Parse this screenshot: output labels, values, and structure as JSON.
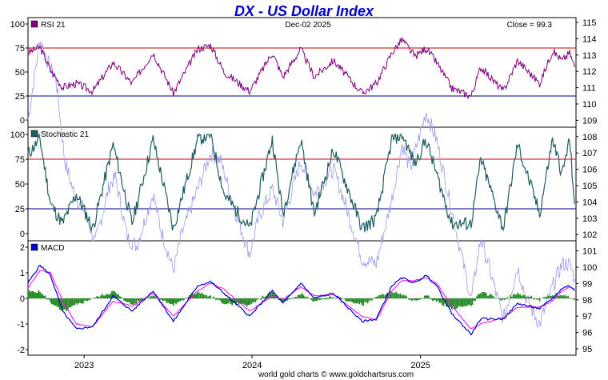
{
  "header": {
    "title": "DX  -  US Dollar Index",
    "date": "Dec-02  2025",
    "close_label": "Close = 99.3"
  },
  "footer": {
    "credit": "world gold charts © www.goldchartsrus.com"
  },
  "colors": {
    "title": "#0000cc",
    "rsi": "#800080",
    "stoch": "#1f5f5f",
    "macd": "#0000cc",
    "signal": "#ff00ff",
    "hist": "#228b22",
    "price": "#9999ee",
    "overbought": "#cc0000",
    "oversold": "#000080"
  },
  "panels": [
    {
      "key": "rsi",
      "legend": "RSI 21",
      "y_ticks": [
        "100",
        "75",
        "50",
        "25",
        "0"
      ],
      "levels": [
        75,
        25
      ]
    },
    {
      "key": "stoch",
      "legend": "Stochastic 21",
      "y_ticks": [
        "100",
        "75",
        "50",
        "25",
        "0"
      ],
      "levels": [
        75,
        25
      ]
    },
    {
      "key": "macd",
      "legend": "MACD",
      "y_ticks": [
        "2",
        "1",
        "0",
        "-1",
        "-2"
      ],
      "levels": []
    }
  ],
  "chart_data": {
    "type": "line",
    "title": "DX  -  US Dollar Index",
    "x_labels": [
      "2023",
      "2024",
      "2025"
    ],
    "x_range": [
      "2022-09",
      "2025-12"
    ],
    "price": {
      "name": "DX",
      "right_axis_ticks": [
        "115",
        "114",
        "113",
        "112",
        "111",
        "110",
        "109",
        "108",
        "107",
        "106",
        "105",
        "104",
        "103",
        "102",
        "101",
        "100",
        "99",
        "98",
        "97",
        "96",
        "95"
      ],
      "ylim": [
        94.5,
        115.7
      ],
      "points": [
        [
          "2022-09-01",
          109.0
        ],
        [
          "2022-09-27",
          114.0
        ],
        [
          "2022-10-15",
          112.5
        ],
        [
          "2022-11-01",
          111.5
        ],
        [
          "2022-11-20",
          106.5
        ],
        [
          "2022-12-10",
          104.5
        ],
        [
          "2023-01-01",
          103.5
        ],
        [
          "2023-01-25",
          101.5
        ],
        [
          "2023-02-25",
          105.0
        ],
        [
          "2023-03-10",
          105.5
        ],
        [
          "2023-04-05",
          101.8
        ],
        [
          "2023-04-25",
          101.3
        ],
        [
          "2023-05-31",
          104.5
        ],
        [
          "2023-06-15",
          102.5
        ],
        [
          "2023-07-14",
          99.8
        ],
        [
          "2023-08-01",
          102.0
        ],
        [
          "2023-09-05",
          104.8
        ],
        [
          "2023-10-03",
          107.0
        ],
        [
          "2023-10-25",
          106.5
        ],
        [
          "2023-11-30",
          103.0
        ],
        [
          "2023-12-27",
          100.8
        ],
        [
          "2024-01-15",
          103.0
        ],
        [
          "2024-02-14",
          104.8
        ],
        [
          "2024-03-08",
          102.8
        ],
        [
          "2024-04-16",
          106.5
        ],
        [
          "2024-05-15",
          104.5
        ],
        [
          "2024-06-26",
          106.0
        ],
        [
          "2024-07-20",
          104.0
        ],
        [
          "2024-08-27",
          100.5
        ],
        [
          "2024-09-27",
          100.2
        ],
        [
          "2024-10-31",
          104.2
        ],
        [
          "2024-11-22",
          107.5
        ],
        [
          "2024-12-10",
          106.0
        ],
        [
          "2025-01-13",
          109.5
        ],
        [
          "2025-02-05",
          107.8
        ],
        [
          "2025-03-10",
          103.5
        ],
        [
          "2025-04-21",
          98.0
        ],
        [
          "2025-05-12",
          101.8
        ],
        [
          "2025-06-30",
          96.8
        ],
        [
          "2025-07-31",
          100.0
        ],
        [
          "2025-08-20",
          98.0
        ],
        [
          "2025-09-17",
          96.5
        ],
        [
          "2025-10-15",
          98.8
        ],
        [
          "2025-11-05",
          100.2
        ],
        [
          "2025-11-21",
          100.2
        ],
        [
          "2025-12-02",
          99.3
        ]
      ]
    },
    "indicators": [
      {
        "name": "RSI 21",
        "ylim": [
          0,
          100
        ],
        "points": [
          [
            "2022-09-01",
            70
          ],
          [
            "2022-09-27",
            76
          ],
          [
            "2022-10-20",
            52
          ],
          [
            "2022-11-15",
            34
          ],
          [
            "2022-12-15",
            38
          ],
          [
            "2023-01-20",
            30
          ],
          [
            "2023-03-05",
            60
          ],
          [
            "2023-04-15",
            38
          ],
          [
            "2023-05-31",
            70
          ],
          [
            "2023-07-14",
            28
          ],
          [
            "2023-09-05",
            74
          ],
          [
            "2023-10-03",
            78
          ],
          [
            "2023-11-01",
            50
          ],
          [
            "2023-12-27",
            30
          ],
          [
            "2024-02-14",
            70
          ],
          [
            "2024-03-08",
            45
          ],
          [
            "2024-04-16",
            74
          ],
          [
            "2024-05-15",
            45
          ],
          [
            "2024-06-26",
            62
          ],
          [
            "2024-08-27",
            28
          ],
          [
            "2024-09-27",
            38
          ],
          [
            "2024-10-31",
            70
          ],
          [
            "2024-11-22",
            84
          ],
          [
            "2024-12-20",
            66
          ],
          [
            "2025-01-13",
            75
          ],
          [
            "2025-02-05",
            60
          ],
          [
            "2025-03-10",
            33
          ],
          [
            "2025-04-21",
            25
          ],
          [
            "2025-05-12",
            55
          ],
          [
            "2025-06-30",
            30
          ],
          [
            "2025-07-31",
            62
          ],
          [
            "2025-09-17",
            38
          ],
          [
            "2025-10-15",
            72
          ],
          [
            "2025-11-05",
            62
          ],
          [
            "2025-11-21",
            70
          ],
          [
            "2025-12-02",
            55
          ]
        ]
      },
      {
        "name": "Stochastic 21",
        "ylim": [
          0,
          100
        ],
        "points": [
          [
            "2022-09-01",
            80
          ],
          [
            "2022-09-27",
            95
          ],
          [
            "2022-10-20",
            30
          ],
          [
            "2022-11-15",
            10
          ],
          [
            "2022-12-15",
            40
          ],
          [
            "2023-01-20",
            5
          ],
          [
            "2023-03-05",
            90
          ],
          [
            "2023-04-15",
            10
          ],
          [
            "2023-05-31",
            95
          ],
          [
            "2023-07-14",
            5
          ],
          [
            "2023-09-05",
            95
          ],
          [
            "2023-10-03",
            100
          ],
          [
            "2023-11-01",
            40
          ],
          [
            "2023-12-27",
            5
          ],
          [
            "2024-02-14",
            95
          ],
          [
            "2024-03-08",
            20
          ],
          [
            "2024-04-16",
            95
          ],
          [
            "2024-05-15",
            20
          ],
          [
            "2024-06-26",
            85
          ],
          [
            "2024-08-27",
            5
          ],
          [
            "2024-09-27",
            15
          ],
          [
            "2024-10-31",
            95
          ],
          [
            "2024-11-22",
            100
          ],
          [
            "2024-12-20",
            70
          ],
          [
            "2025-01-13",
            95
          ],
          [
            "2025-02-05",
            60
          ],
          [
            "2025-03-10",
            10
          ],
          [
            "2025-04-21",
            10
          ],
          [
            "2025-05-12",
            75
          ],
          [
            "2025-06-30",
            5
          ],
          [
            "2025-07-31",
            90
          ],
          [
            "2025-09-17",
            20
          ],
          [
            "2025-10-15",
            95
          ],
          [
            "2025-11-05",
            60
          ],
          [
            "2025-11-21",
            95
          ],
          [
            "2025-12-02",
            30
          ]
        ]
      },
      {
        "name": "MACD",
        "ylim": [
          -2.2,
          2.2
        ],
        "macd": [
          [
            "2022-09-01",
            0.6
          ],
          [
            "2022-09-27",
            1.3
          ],
          [
            "2022-10-20",
            0.9
          ],
          [
            "2022-11-15",
            -0.5
          ],
          [
            "2022-12-15",
            -1.2
          ],
          [
            "2023-01-20",
            -1.1
          ],
          [
            "2023-03-05",
            0.1
          ],
          [
            "2023-04-15",
            -0.5
          ],
          [
            "2023-05-31",
            0.3
          ],
          [
            "2023-07-14",
            -0.9
          ],
          [
            "2023-09-05",
            0.5
          ],
          [
            "2023-10-03",
            0.65
          ],
          [
            "2023-11-01",
            0.2
          ],
          [
            "2023-12-27",
            -0.7
          ],
          [
            "2024-02-14",
            0.3
          ],
          [
            "2024-03-08",
            -0.2
          ],
          [
            "2024-04-16",
            0.6
          ],
          [
            "2024-05-15",
            0.0
          ],
          [
            "2024-06-26",
            0.2
          ],
          [
            "2024-08-27",
            -0.9
          ],
          [
            "2024-09-27",
            -0.8
          ],
          [
            "2024-10-31",
            0.5
          ],
          [
            "2024-11-22",
            0.8
          ],
          [
            "2024-12-20",
            0.6
          ],
          [
            "2025-01-13",
            0.9
          ],
          [
            "2025-02-05",
            0.5
          ],
          [
            "2025-03-10",
            -0.6
          ],
          [
            "2025-04-21",
            -1.4
          ],
          [
            "2025-05-12",
            -0.8
          ],
          [
            "2025-06-30",
            -0.8
          ],
          [
            "2025-07-31",
            -0.2
          ],
          [
            "2025-09-17",
            -0.4
          ],
          [
            "2025-10-15",
            0.0
          ],
          [
            "2025-11-05",
            0.4
          ],
          [
            "2025-11-21",
            0.5
          ],
          [
            "2025-12-02",
            0.3
          ]
        ],
        "signal": [
          [
            "2022-09-01",
            0.4
          ],
          [
            "2022-09-27",
            1.1
          ],
          [
            "2022-10-20",
            1.0
          ],
          [
            "2022-11-15",
            -0.1
          ],
          [
            "2022-12-15",
            -1.0
          ],
          [
            "2023-01-20",
            -1.1
          ],
          [
            "2023-03-05",
            -0.1
          ],
          [
            "2023-04-15",
            -0.3
          ],
          [
            "2023-05-31",
            0.2
          ],
          [
            "2023-07-14",
            -0.7
          ],
          [
            "2023-09-05",
            0.3
          ],
          [
            "2023-10-03",
            0.6
          ],
          [
            "2023-11-01",
            0.35
          ],
          [
            "2023-12-27",
            -0.5
          ],
          [
            "2024-02-14",
            0.1
          ],
          [
            "2024-03-08",
            -0.05
          ],
          [
            "2024-04-16",
            0.45
          ],
          [
            "2024-05-15",
            0.1
          ],
          [
            "2024-06-26",
            0.15
          ],
          [
            "2024-08-27",
            -0.7
          ],
          [
            "2024-09-27",
            -0.85
          ],
          [
            "2024-10-31",
            0.3
          ],
          [
            "2024-11-22",
            0.7
          ],
          [
            "2024-12-20",
            0.7
          ],
          [
            "2025-01-13",
            0.8
          ],
          [
            "2025-02-05",
            0.6
          ],
          [
            "2025-03-10",
            -0.3
          ],
          [
            "2025-04-21",
            -1.2
          ],
          [
            "2025-05-12",
            -1.0
          ],
          [
            "2025-06-30",
            -0.75
          ],
          [
            "2025-07-31",
            -0.35
          ],
          [
            "2025-09-17",
            -0.35
          ],
          [
            "2025-10-15",
            -0.1
          ],
          [
            "2025-11-05",
            0.3
          ],
          [
            "2025-11-21",
            0.45
          ],
          [
            "2025-12-02",
            0.35
          ]
        ]
      }
    ]
  }
}
